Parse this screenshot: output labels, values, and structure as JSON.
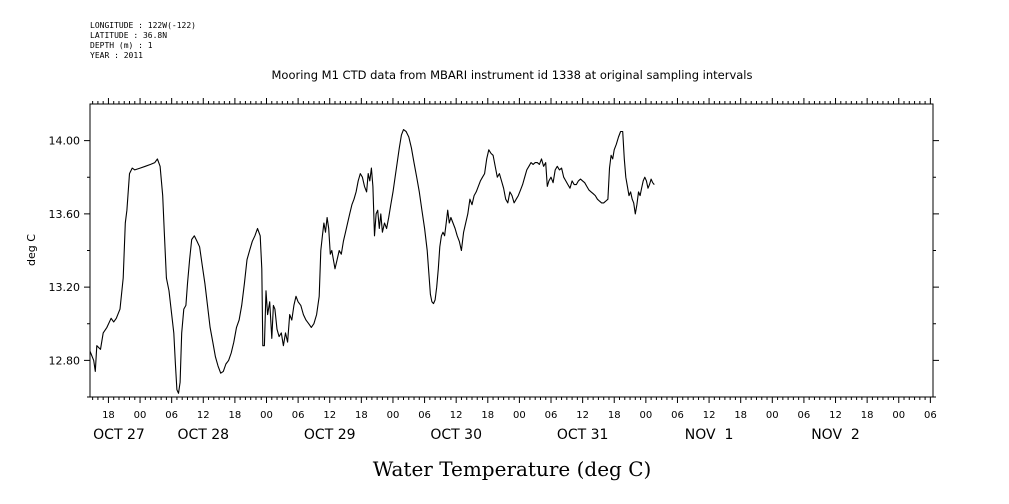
{
  "header": {
    "lines": [
      "LONGITUDE : 122W(-122)",
      "LATITUDE : 36.8N",
      "DEPTH (m) : 1",
      "YEAR : 2011"
    ]
  },
  "chart_data": {
    "type": "line",
    "title": "Mooring M1 CTD data from MBARI instrument id 1338 at original sampling intervals",
    "xlabel": "Water Temperature (deg C)",
    "ylabel": "deg C",
    "ylim": [
      12.6,
      14.2
    ],
    "yticks": [
      12.8,
      13.2,
      13.6,
      14.0
    ],
    "ytick_labels": [
      "12.80",
      "13.20",
      "13.60",
      "14.00"
    ],
    "x_unit": "hours since OCT 27 00:00",
    "xlim": [
      -9.5,
      150.5
    ],
    "hour_ticks": [
      {
        "x": -6,
        "label": "18"
      },
      {
        "x": 0,
        "label": "00"
      },
      {
        "x": 6,
        "label": "06"
      },
      {
        "x": 12,
        "label": "12"
      },
      {
        "x": 18,
        "label": "18"
      },
      {
        "x": 24,
        "label": "00"
      },
      {
        "x": 30,
        "label": "06"
      },
      {
        "x": 36,
        "label": "12"
      },
      {
        "x": 42,
        "label": "18"
      },
      {
        "x": 48,
        "label": "00"
      },
      {
        "x": 54,
        "label": "06"
      },
      {
        "x": 60,
        "label": "12"
      },
      {
        "x": 66,
        "label": "18"
      },
      {
        "x": 72,
        "label": "00"
      },
      {
        "x": 78,
        "label": "06"
      },
      {
        "x": 84,
        "label": "12"
      },
      {
        "x": 90,
        "label": "18"
      },
      {
        "x": 96,
        "label": "00"
      },
      {
        "x": 102,
        "label": "06"
      },
      {
        "x": 108,
        "label": "12"
      },
      {
        "x": 114,
        "label": "18"
      },
      {
        "x": 120,
        "label": "00"
      },
      {
        "x": 126,
        "label": "06"
      },
      {
        "x": 132,
        "label": "12"
      },
      {
        "x": 138,
        "label": "18"
      },
      {
        "x": 144,
        "label": "00"
      },
      {
        "x": 150,
        "label": "06"
      }
    ],
    "date_labels": [
      {
        "x": -4,
        "label": "OCT 27"
      },
      {
        "x": 12,
        "label": "OCT 28"
      },
      {
        "x": 36,
        "label": "OCT 29"
      },
      {
        "x": 60,
        "label": "OCT 30"
      },
      {
        "x": 84,
        "label": "OCT 31"
      },
      {
        "x": 108,
        "label": "NOV  1"
      },
      {
        "x": 132,
        "label": "NOV  2"
      }
    ],
    "grid": false,
    "series": [
      {
        "color": "#000000",
        "points": [
          [
            -9.5,
            12.85
          ],
          [
            -8.8,
            12.8
          ],
          [
            -8.5,
            12.74
          ],
          [
            -8.2,
            12.88
          ],
          [
            -7.5,
            12.86
          ],
          [
            -7.0,
            12.95
          ],
          [
            -6.3,
            12.98
          ],
          [
            -5.5,
            13.03
          ],
          [
            -5.0,
            13.01
          ],
          [
            -4.5,
            13.03
          ],
          [
            -3.8,
            13.08
          ],
          [
            -3.2,
            13.25
          ],
          [
            -2.8,
            13.55
          ],
          [
            -2.5,
            13.62
          ],
          [
            -2.0,
            13.82
          ],
          [
            -1.5,
            13.85
          ],
          [
            -1.0,
            13.84
          ],
          [
            0.0,
            13.85
          ],
          [
            1.0,
            13.86
          ],
          [
            2.0,
            13.87
          ],
          [
            2.8,
            13.88
          ],
          [
            3.3,
            13.9
          ],
          [
            3.8,
            13.86
          ],
          [
            4.3,
            13.7
          ],
          [
            4.6,
            13.5
          ],
          [
            5.0,
            13.25
          ],
          [
            5.5,
            13.18
          ],
          [
            6.0,
            13.05
          ],
          [
            6.4,
            12.95
          ],
          [
            6.7,
            12.78
          ],
          [
            7.0,
            12.64
          ],
          [
            7.3,
            12.62
          ],
          [
            7.6,
            12.68
          ],
          [
            7.9,
            12.95
          ],
          [
            8.3,
            13.08
          ],
          [
            8.7,
            13.1
          ],
          [
            9.0,
            13.22
          ],
          [
            9.4,
            13.35
          ],
          [
            9.8,
            13.46
          ],
          [
            10.3,
            13.48
          ],
          [
            10.8,
            13.45
          ],
          [
            11.3,
            13.42
          ],
          [
            11.8,
            13.32
          ],
          [
            12.3,
            13.22
          ],
          [
            12.8,
            13.1
          ],
          [
            13.3,
            12.98
          ],
          [
            13.8,
            12.9
          ],
          [
            14.3,
            12.82
          ],
          [
            14.8,
            12.77
          ],
          [
            15.3,
            12.73
          ],
          [
            15.8,
            12.74
          ],
          [
            16.3,
            12.78
          ],
          [
            16.8,
            12.8
          ],
          [
            17.3,
            12.84
          ],
          [
            17.8,
            12.9
          ],
          [
            18.3,
            12.98
          ],
          [
            18.8,
            13.02
          ],
          [
            19.3,
            13.1
          ],
          [
            19.8,
            13.22
          ],
          [
            20.3,
            13.35
          ],
          [
            20.8,
            13.4
          ],
          [
            21.3,
            13.45
          ],
          [
            21.8,
            13.48
          ],
          [
            22.3,
            13.52
          ],
          [
            22.8,
            13.48
          ],
          [
            23.1,
            13.3
          ],
          [
            23.3,
            12.88
          ],
          [
            23.6,
            12.88
          ],
          [
            23.9,
            13.18
          ],
          [
            24.2,
            13.05
          ],
          [
            24.6,
            13.12
          ],
          [
            25.0,
            12.92
          ],
          [
            25.3,
            13.1
          ],
          [
            25.6,
            13.08
          ],
          [
            26.0,
            12.97
          ],
          [
            26.4,
            12.93
          ],
          [
            26.8,
            12.95
          ],
          [
            27.2,
            12.88
          ],
          [
            27.6,
            12.95
          ],
          [
            28.0,
            12.9
          ],
          [
            28.4,
            13.05
          ],
          [
            28.8,
            13.02
          ],
          [
            29.2,
            13.1
          ],
          [
            29.6,
            13.15
          ],
          [
            30.0,
            13.12
          ],
          [
            30.5,
            13.1
          ],
          [
            31.0,
            13.05
          ],
          [
            31.5,
            13.02
          ],
          [
            32.0,
            13.0
          ],
          [
            32.5,
            12.98
          ],
          [
            33.0,
            13.0
          ],
          [
            33.5,
            13.05
          ],
          [
            34.0,
            13.15
          ],
          [
            34.3,
            13.4
          ],
          [
            34.6,
            13.48
          ],
          [
            34.9,
            13.55
          ],
          [
            35.2,
            13.5
          ],
          [
            35.5,
            13.58
          ],
          [
            35.8,
            13.52
          ],
          [
            36.1,
            13.38
          ],
          [
            36.4,
            13.4
          ],
          [
            36.7,
            13.35
          ],
          [
            37.0,
            13.3
          ],
          [
            37.4,
            13.35
          ],
          [
            37.8,
            13.4
          ],
          [
            38.2,
            13.38
          ],
          [
            38.6,
            13.45
          ],
          [
            39.0,
            13.5
          ],
          [
            39.4,
            13.55
          ],
          [
            39.8,
            13.6
          ],
          [
            40.2,
            13.65
          ],
          [
            40.6,
            13.68
          ],
          [
            41.0,
            13.72
          ],
          [
            41.4,
            13.78
          ],
          [
            41.8,
            13.82
          ],
          [
            42.2,
            13.8
          ],
          [
            42.6,
            13.75
          ],
          [
            43.0,
            13.72
          ],
          [
            43.3,
            13.82
          ],
          [
            43.6,
            13.78
          ],
          [
            43.9,
            13.85
          ],
          [
            44.2,
            13.75
          ],
          [
            44.5,
            13.48
          ],
          [
            44.8,
            13.6
          ],
          [
            45.1,
            13.62
          ],
          [
            45.4,
            13.52
          ],
          [
            45.7,
            13.6
          ],
          [
            46.0,
            13.5
          ],
          [
            46.4,
            13.55
          ],
          [
            46.8,
            13.52
          ],
          [
            47.2,
            13.58
          ],
          [
            47.6,
            13.65
          ],
          [
            48.0,
            13.72
          ],
          [
            48.4,
            13.8
          ],
          [
            48.8,
            13.88
          ],
          [
            49.2,
            13.96
          ],
          [
            49.6,
            14.03
          ],
          [
            50.0,
            14.06
          ],
          [
            50.5,
            14.05
          ],
          [
            51.0,
            14.02
          ],
          [
            51.5,
            13.96
          ],
          [
            52.0,
            13.88
          ],
          [
            52.5,
            13.8
          ],
          [
            53.0,
            13.72
          ],
          [
            53.5,
            13.62
          ],
          [
            54.0,
            13.52
          ],
          [
            54.5,
            13.4
          ],
          [
            54.8,
            13.28
          ],
          [
            55.1,
            13.16
          ],
          [
            55.4,
            13.12
          ],
          [
            55.7,
            13.11
          ],
          [
            56.0,
            13.13
          ],
          [
            56.3,
            13.2
          ],
          [
            56.6,
            13.3
          ],
          [
            56.9,
            13.42
          ],
          [
            57.2,
            13.48
          ],
          [
            57.5,
            13.5
          ],
          [
            57.8,
            13.48
          ],
          [
            58.1,
            13.55
          ],
          [
            58.4,
            13.62
          ],
          [
            58.7,
            13.55
          ],
          [
            59.0,
            13.58
          ],
          [
            59.4,
            13.55
          ],
          [
            59.8,
            13.52
          ],
          [
            60.2,
            13.48
          ],
          [
            60.6,
            13.45
          ],
          [
            61.0,
            13.4
          ],
          [
            61.4,
            13.5
          ],
          [
            61.8,
            13.55
          ],
          [
            62.2,
            13.6
          ],
          [
            62.6,
            13.68
          ],
          [
            63.0,
            13.65
          ],
          [
            63.4,
            13.7
          ],
          [
            63.8,
            13.72
          ],
          [
            64.2,
            13.75
          ],
          [
            64.6,
            13.78
          ],
          [
            65.0,
            13.8
          ],
          [
            65.4,
            13.82
          ],
          [
            65.8,
            13.9
          ],
          [
            66.2,
            13.95
          ],
          [
            66.6,
            13.93
          ],
          [
            67.0,
            13.92
          ],
          [
            67.4,
            13.86
          ],
          [
            67.8,
            13.8
          ],
          [
            68.2,
            13.82
          ],
          [
            68.6,
            13.78
          ],
          [
            69.0,
            13.74
          ],
          [
            69.4,
            13.68
          ],
          [
            69.8,
            13.66
          ],
          [
            70.2,
            13.72
          ],
          [
            70.6,
            13.7
          ],
          [
            71.0,
            13.66
          ],
          [
            71.4,
            13.68
          ],
          [
            71.8,
            13.7
          ],
          [
            72.2,
            13.73
          ],
          [
            72.6,
            13.76
          ],
          [
            73.0,
            13.8
          ],
          [
            73.4,
            13.84
          ],
          [
            73.8,
            13.86
          ],
          [
            74.2,
            13.88
          ],
          [
            74.6,
            13.87
          ],
          [
            75.0,
            13.88
          ],
          [
            75.4,
            13.88
          ],
          [
            75.8,
            13.87
          ],
          [
            76.2,
            13.9
          ],
          [
            76.6,
            13.86
          ],
          [
            77.0,
            13.88
          ],
          [
            77.3,
            13.75
          ],
          [
            77.6,
            13.78
          ],
          [
            78.0,
            13.8
          ],
          [
            78.4,
            13.77
          ],
          [
            78.8,
            13.84
          ],
          [
            79.2,
            13.86
          ],
          [
            79.6,
            13.84
          ],
          [
            80.0,
            13.85
          ],
          [
            80.4,
            13.8
          ],
          [
            80.8,
            13.78
          ],
          [
            81.2,
            13.76
          ],
          [
            81.6,
            13.74
          ],
          [
            82.0,
            13.78
          ],
          [
            82.4,
            13.76
          ],
          [
            82.8,
            13.76
          ],
          [
            83.2,
            13.78
          ],
          [
            83.6,
            13.79
          ],
          [
            84.0,
            13.78
          ],
          [
            84.4,
            13.77
          ],
          [
            84.8,
            13.75
          ],
          [
            85.2,
            13.73
          ],
          [
            85.6,
            13.72
          ],
          [
            86.0,
            13.71
          ],
          [
            86.4,
            13.7
          ],
          [
            86.8,
            13.68
          ],
          [
            87.2,
            13.67
          ],
          [
            87.6,
            13.66
          ],
          [
            88.0,
            13.66
          ],
          [
            88.4,
            13.67
          ],
          [
            88.8,
            13.68
          ],
          [
            89.1,
            13.85
          ],
          [
            89.4,
            13.92
          ],
          [
            89.7,
            13.9
          ],
          [
            90.0,
            13.95
          ],
          [
            90.4,
            13.98
          ],
          [
            90.8,
            14.02
          ],
          [
            91.2,
            14.05
          ],
          [
            91.6,
            14.05
          ],
          [
            91.9,
            13.9
          ],
          [
            92.2,
            13.8
          ],
          [
            92.5,
            13.75
          ],
          [
            92.8,
            13.7
          ],
          [
            93.1,
            13.72
          ],
          [
            93.4,
            13.68
          ],
          [
            93.7,
            13.66
          ],
          [
            94.0,
            13.6
          ],
          [
            94.3,
            13.65
          ],
          [
            94.6,
            13.72
          ],
          [
            94.9,
            13.7
          ],
          [
            95.2,
            13.74
          ],
          [
            95.5,
            13.78
          ],
          [
            95.8,
            13.8
          ],
          [
            96.1,
            13.78
          ],
          [
            96.4,
            13.74
          ],
          [
            96.7,
            13.76
          ],
          [
            97.0,
            13.79
          ],
          [
            97.3,
            13.77
          ],
          [
            97.6,
            13.76
          ]
        ]
      }
    ]
  }
}
